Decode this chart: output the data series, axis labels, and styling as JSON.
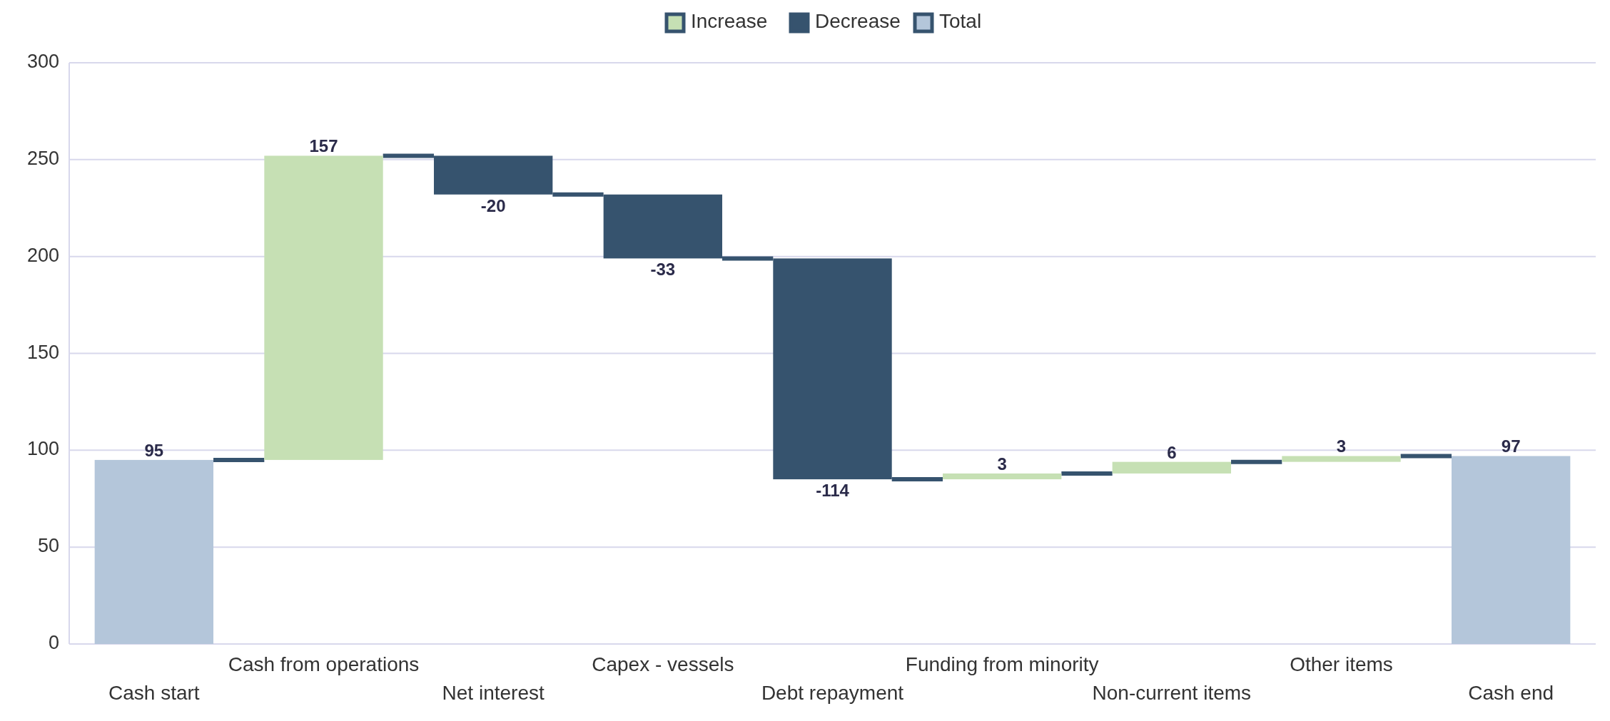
{
  "chart_data": {
    "type": "bar",
    "categories": [
      "Cash start",
      "Cash from operations",
      "Net interest",
      "Capex - vessels",
      "Debt repayment",
      "Funding from minority",
      "Non-current items",
      "Other items",
      "Cash end"
    ],
    "series": [
      {
        "name": "Increase",
        "color": "#c6e0b4",
        "values": [
          null,
          157,
          null,
          null,
          null,
          3,
          6,
          3,
          null
        ],
        "base": [
          null,
          95,
          null,
          null,
          null,
          85,
          88,
          94,
          null
        ]
      },
      {
        "name": "Decrease",
        "color": "#36536e",
        "values": [
          null,
          null,
          -20,
          -33,
          -114,
          null,
          null,
          null,
          null
        ],
        "base": [
          null,
          null,
          252,
          232,
          199,
          null,
          null,
          null,
          null
        ]
      },
      {
        "name": "Total",
        "color": "#b4c6da",
        "values": [
          95,
          null,
          null,
          null,
          null,
          null,
          null,
          null,
          97
        ],
        "base": [
          0,
          null,
          null,
          null,
          null,
          null,
          null,
          null,
          0
        ]
      }
    ],
    "ylim": [
      0,
      300
    ],
    "yticks": [
      0,
      50,
      100,
      150,
      200,
      250,
      300
    ],
    "grid": "y",
    "legend": "top",
    "data_labels": true
  }
}
